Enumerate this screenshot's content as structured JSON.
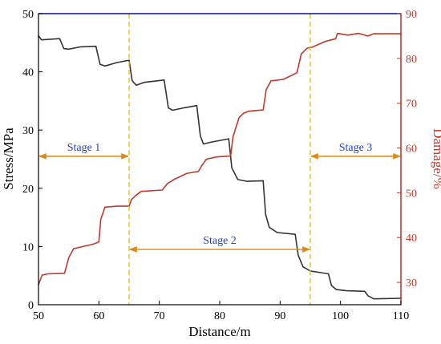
{
  "chart_data": {
    "type": "line",
    "title": "",
    "xlabel": "Distance/m",
    "ylabel_left": "Stress/MPa",
    "ylabel_right": "Damage/%",
    "xlim": [
      50,
      110
    ],
    "ylim_left": [
      0,
      50
    ],
    "ylim_right": [
      25,
      90
    ],
    "x_ticks": [
      50,
      60,
      70,
      80,
      90,
      100,
      110
    ],
    "y_left_ticks": [
      0,
      10,
      20,
      30,
      40,
      50
    ],
    "y_right_ticks": [
      30,
      40,
      50,
      60,
      70,
      80,
      90
    ],
    "colors": {
      "stress": "#333333",
      "damage": "#c0392b",
      "right_axis": "#c0392b",
      "top_line": "#1a1ab8",
      "stage_line": "#e6c01e",
      "stage_arrow": "#d98a1a",
      "stage_text": "#1f3fd1"
    },
    "series": [
      {
        "axis": "left",
        "points": [
          [
            50,
            46.2
          ],
          [
            50.5,
            45.5
          ],
          [
            53.5,
            45.7
          ],
          [
            54.2,
            44.0
          ],
          [
            55,
            43.9
          ],
          [
            57,
            44.3
          ],
          [
            59.5,
            44.4
          ],
          [
            60.2,
            41.3
          ],
          [
            61,
            41.0
          ],
          [
            63,
            41.6
          ],
          [
            65,
            42.0
          ],
          [
            65.5,
            38.5
          ],
          [
            66.2,
            37.7
          ],
          [
            67.5,
            38.2
          ],
          [
            70.8,
            38.6
          ],
          [
            71.5,
            33.8
          ],
          [
            72.2,
            33.4
          ],
          [
            74,
            33.8
          ],
          [
            76.2,
            34.2
          ],
          [
            76.8,
            29.0
          ],
          [
            77.3,
            27.6
          ],
          [
            78.5,
            27.9
          ],
          [
            81.5,
            28.5
          ],
          [
            82,
            23.5
          ],
          [
            83,
            21.5
          ],
          [
            84.5,
            21.2
          ],
          [
            87.2,
            21.3
          ],
          [
            87.6,
            15.5
          ],
          [
            88.2,
            13.3
          ],
          [
            89.5,
            12.4
          ],
          [
            92.5,
            12.1
          ],
          [
            93,
            8.5
          ],
          [
            93.8,
            6.5
          ],
          [
            95,
            5.8
          ],
          [
            98,
            5.3
          ],
          [
            98.5,
            3.3
          ],
          [
            99.3,
            2.6
          ],
          [
            101,
            2.4
          ],
          [
            104,
            2.3
          ],
          [
            104.6,
            1.5
          ],
          [
            105.5,
            1.0
          ],
          [
            110,
            1.1
          ]
        ]
      },
      {
        "axis": "right",
        "points": [
          [
            50,
            29.5
          ],
          [
            50.6,
            31.6
          ],
          [
            51.5,
            31.9
          ],
          [
            54.3,
            32.0
          ],
          [
            55,
            35.5
          ],
          [
            55.8,
            37.5
          ],
          [
            57,
            37.9
          ],
          [
            59,
            38.5
          ],
          [
            60,
            39.0
          ],
          [
            60.3,
            44.0
          ],
          [
            61,
            46.8
          ],
          [
            63,
            47.0
          ],
          [
            65,
            47.0
          ],
          [
            65.4,
            48.5
          ],
          [
            66.2,
            49.5
          ],
          [
            67,
            50.3
          ],
          [
            70.5,
            50.6
          ],
          [
            71.3,
            52.0
          ],
          [
            72.5,
            53.0
          ],
          [
            74.5,
            54.3
          ],
          [
            76.5,
            54.8
          ],
          [
            77,
            56.0
          ],
          [
            77.8,
            57.5
          ],
          [
            79.5,
            58.0
          ],
          [
            81.8,
            58.2
          ],
          [
            82.2,
            62.5
          ],
          [
            83.2,
            66.8
          ],
          [
            84,
            67.8
          ],
          [
            84.8,
            68.2
          ],
          [
            87.2,
            68.5
          ],
          [
            87.7,
            73.0
          ],
          [
            88.5,
            75.0
          ],
          [
            90.5,
            75.3
          ],
          [
            92.8,
            76.8
          ],
          [
            93.5,
            81.0
          ],
          [
            94.5,
            82.3
          ],
          [
            95.3,
            82.5
          ],
          [
            97.5,
            83.8
          ],
          [
            99.2,
            84.4
          ],
          [
            99.5,
            85.6
          ],
          [
            101.2,
            85.2
          ],
          [
            103,
            85.6
          ],
          [
            104.5,
            85.0
          ],
          [
            105.5,
            85.5
          ],
          [
            110,
            85.5
          ]
        ]
      }
    ],
    "top_line_value": 50,
    "stage_boundaries": [
      65,
      95
    ],
    "stages": [
      {
        "label": "Stage 1",
        "x_from": 50,
        "x_to": 65,
        "y": 25.5
      },
      {
        "label": "Stage 2",
        "x_from": 65,
        "x_to": 95,
        "y": 9.5
      },
      {
        "label": "Stage 3",
        "x_from": 95,
        "x_to": 110,
        "y": 25.5
      }
    ]
  }
}
